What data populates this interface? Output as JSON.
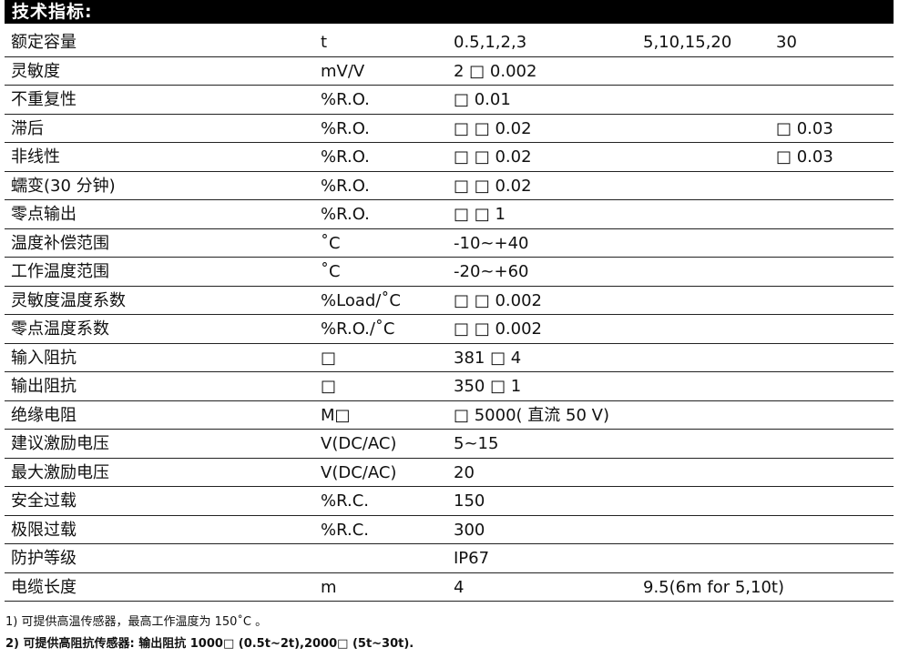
{
  "title": "技术指标:",
  "rows": [
    [
      "额定容量",
      "t",
      "0.5,1,2,3",
      "5,10,15,20",
      "30"
    ],
    [
      "灵敏度",
      "mV/V",
      "2 □ 0.002",
      "",
      ""
    ],
    [
      "不重复性",
      "%R.O.",
      "□ 0.01",
      "",
      ""
    ],
    [
      "滞后",
      "%R.O.",
      "□ □ 0.02",
      "",
      "□ 0.03"
    ],
    [
      "非线性",
      "%R.O.",
      "□ □ 0.02",
      "",
      "□ 0.03"
    ],
    [
      "蠕变(30 分钟)",
      "%R.O.",
      "□ □ 0.02",
      "",
      ""
    ],
    [
      "零点输出",
      "%R.O.",
      "□ □ 1",
      "",
      ""
    ],
    [
      "温度补偿范围",
      "˚C",
      "-10~+40",
      "",
      ""
    ],
    [
      "工作温度范围",
      "˚C",
      "-20~+60",
      "",
      ""
    ],
    [
      "灵敏度温度系数",
      "%Load/˚C",
      "□ □ 0.002",
      "",
      ""
    ],
    [
      "零点温度系数",
      "%R.O./˚C",
      "□ □ 0.002",
      "",
      ""
    ],
    [
      "输入阻抗",
      "□",
      "381 □ 4",
      "",
      ""
    ],
    [
      "输出阻抗",
      "□",
      "350 □ 1",
      "",
      ""
    ],
    [
      "绝缘电阻",
      "M□",
      "□ 5000( 直流 50 V)",
      "",
      ""
    ],
    [
      "建议激励电压",
      "V(DC/AC)",
      "5~15",
      "",
      ""
    ],
    [
      "最大激励电压",
      "V(DC/AC)",
      "20",
      "",
      ""
    ],
    [
      "安全过载",
      "%R.C.",
      "150",
      "",
      ""
    ],
    [
      "极限过载",
      "%R.C.",
      "300",
      "",
      ""
    ],
    [
      "防护等级",
      "",
      "IP67",
      "",
      ""
    ],
    [
      "电缆长度",
      "m",
      "4",
      "9.5(6m for 5,10t)",
      ""
    ]
  ],
  "notes": [
    "1)  可提供高温传感器，最高工作温度为 150˚C 。",
    "2)  可提供高阻抗传感器: 输出阻抗 1000□ (0.5t~2t),2000□ (5t~30t)."
  ]
}
